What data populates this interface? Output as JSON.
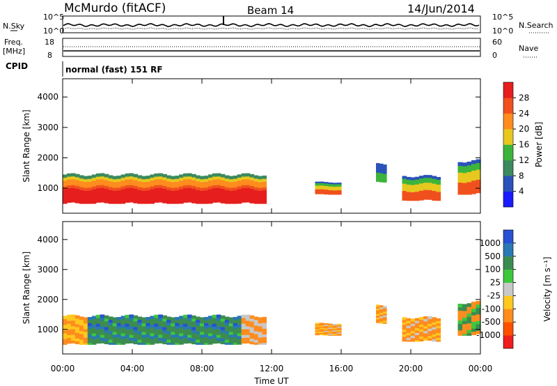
{
  "header": {
    "station": "McMurdo (fitACF)",
    "beam": "Beam 14",
    "date": "14/Jun/2014"
  },
  "noise_panel": {
    "left_label": "N.Sky",
    "right_label": "N.Search",
    "ticks_left": [
      "10^5",
      "10^0"
    ],
    "ticks_right": [
      "10^5",
      "10^0"
    ]
  },
  "freq_panel": {
    "left_label_1": "Freq.",
    "left_label_2": "[MHz]",
    "right_label": "Nave",
    "ticks_left": [
      "18",
      "8"
    ],
    "ticks_right": [
      "60",
      "0"
    ]
  },
  "cpid": {
    "label": "CPID",
    "value": "normal (fast) 151 RF"
  },
  "chart_data": [
    {
      "type": "heatmap",
      "name": "power",
      "ylabel": "Slant Range [km]",
      "xlabel": "Time UT",
      "x_ticks": [
        "00:00",
        "04:00",
        "08:00",
        "12:00",
        "16:00",
        "20:00",
        "00:00"
      ],
      "y_ticks": [
        1000,
        2000,
        3000,
        4000
      ],
      "ylim": [
        180,
        4600
      ],
      "colorbar": {
        "label": "Power [dB]",
        "ticks": [
          "4",
          "8",
          "12",
          "16",
          "20",
          "24",
          "28"
        ],
        "colors": [
          "#1a1aff",
          "#2a52b8",
          "#3c8a5e",
          "#3cb43c",
          "#e6c81e",
          "#ff8c1e",
          "#f0501e",
          "#e61e1e"
        ]
      },
      "regions": [
        {
          "t0": 0.0,
          "t1": 11.7,
          "r0": 500,
          "r1": 1450,
          "level": "high"
        },
        {
          "t0": 14.5,
          "t1": 16.0,
          "r0": 800,
          "r1": 1200,
          "level": "mid"
        },
        {
          "t0": 18.0,
          "t1": 18.6,
          "r0": 1200,
          "r1": 1800,
          "level": "low"
        },
        {
          "t0": 19.5,
          "t1": 21.7,
          "r0": 600,
          "r1": 1400,
          "level": "mid"
        },
        {
          "t0": 22.7,
          "t1": 24.0,
          "r0": 800,
          "r1": 1900,
          "level": "mid"
        }
      ]
    },
    {
      "type": "heatmap",
      "name": "velocity",
      "ylabel": "Slant Range [km]",
      "xlabel": "Time UT",
      "x_ticks": [
        "00:00",
        "04:00",
        "08:00",
        "12:00",
        "16:00",
        "20:00",
        "00:00"
      ],
      "y_ticks": [
        1000,
        2000,
        3000,
        4000
      ],
      "ylim": [
        180,
        4600
      ],
      "colorbar": {
        "label": "Velocity [m s⁻¹]",
        "ticks": [
          "1000",
          "500",
          "100",
          "25",
          "-25",
          "-100",
          "-500",
          "-1000"
        ],
        "colors": [
          "#2850d2",
          "#2a78b4",
          "#3c8c50",
          "#3cc83c",
          "#c8c8c8",
          "#ffc81e",
          "#ff8c1e",
          "#ff5000",
          "#f01e1e"
        ]
      },
      "regions": [
        {
          "t0": 0.0,
          "t1": 11.7,
          "r0": 500,
          "r1": 1450,
          "level": "toward"
        },
        {
          "t0": 14.5,
          "t1": 16.0,
          "r0": 800,
          "r1": 1200,
          "level": "away"
        },
        {
          "t0": 18.0,
          "t1": 18.6,
          "r0": 1200,
          "r1": 1800,
          "level": "away"
        },
        {
          "t0": 19.5,
          "t1": 21.7,
          "r0": 600,
          "r1": 1400,
          "level": "away"
        },
        {
          "t0": 22.7,
          "t1": 24.0,
          "r0": 800,
          "r1": 1900,
          "level": "mixed"
        }
      ]
    }
  ]
}
